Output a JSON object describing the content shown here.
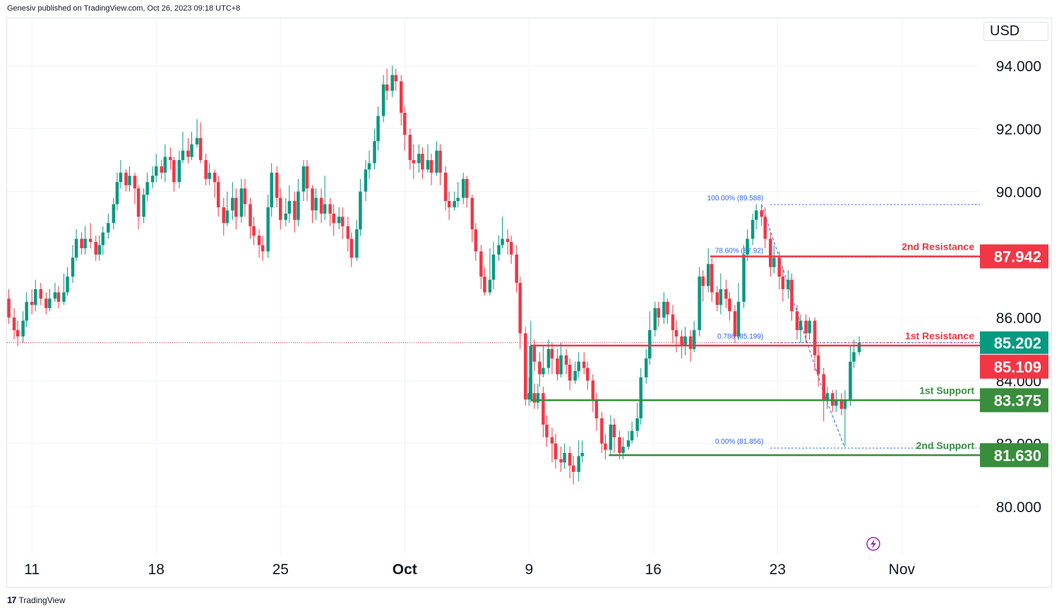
{
  "header": {
    "published": "Genesiv published on TradingView.com, Oct 26, 2023 09:18 UTC+8"
  },
  "currency": "USD",
  "footer": {
    "logo": "17",
    "brand": "TradingView"
  },
  "colors": {
    "up": "#089981",
    "down": "#f23645",
    "resistance": "#f23645",
    "support": "#388e3c",
    "fib": "#2962ff",
    "current": "#089981",
    "grid": "#f0f3fa"
  },
  "chart_data": {
    "type": "candlestick",
    "y_axis": {
      "ticks": [
        "94.000",
        "92.000",
        "90.000",
        "86.000",
        "84.000",
        "82.000",
        "80.000"
      ],
      "tick_values": [
        94,
        92,
        90,
        86,
        84,
        82,
        80
      ],
      "range": [
        78.5,
        95.5
      ]
    },
    "x_axis": {
      "ticks": [
        "11",
        "18",
        "25",
        "Oct",
        "9",
        "16",
        "23",
        "Nov"
      ],
      "tick_days": [
        0,
        7,
        14,
        21,
        28,
        35,
        42,
        49
      ],
      "range_days": [
        -1.4,
        53.4
      ]
    },
    "current_price": {
      "value": 85.202,
      "label": "85.202"
    },
    "levels": [
      {
        "name": "2nd Resistance",
        "value": 87.942,
        "label": "87.942",
        "kind": "resistance",
        "from_day": 38.2
      },
      {
        "name": "1st Resistance",
        "value": 85.109,
        "label": "85.109",
        "kind": "resistance",
        "from_day": 28.1
      },
      {
        "name": "1st Support",
        "value": 83.375,
        "label": "83.375",
        "kind": "support",
        "from_day": 28.1
      },
      {
        "name": "2nd Support",
        "value": 81.63,
        "label": "81.630",
        "kind": "support",
        "from_day": 32.5
      }
    ],
    "fibonacci": [
      {
        "label": "100.00% (89.588)",
        "value": 89.588
      },
      {
        "label": "78.60% (87.92)",
        "value": 87.92
      },
      {
        "label": "0.786 (85.199)",
        "value": 85.199
      },
      {
        "label": "0.00% (81.856)",
        "value": 81.856
      }
    ],
    "fib_from_day": 40.7,
    "candles": [
      [
        -1.3,
        86.6,
        86.0,
        86.9,
        85.8
      ],
      [
        -1.0,
        86.0,
        85.6,
        86.3,
        85.3
      ],
      [
        -0.8,
        85.6,
        85.4,
        85.9,
        85.1
      ],
      [
        -0.5,
        85.4,
        85.9,
        86.2,
        85.2
      ],
      [
        -0.3,
        85.9,
        86.5,
        86.8,
        85.7
      ],
      [
        0.0,
        86.5,
        86.4,
        86.9,
        86.1
      ],
      [
        0.2,
        86.4,
        86.9,
        87.2,
        86.2
      ],
      [
        0.5,
        86.9,
        86.6,
        87.1,
        86.4
      ],
      [
        0.8,
        86.6,
        86.3,
        86.8,
        86.1
      ],
      [
        1.0,
        86.3,
        86.6,
        86.9,
        86.2
      ],
      [
        1.3,
        86.6,
        86.8,
        87.1,
        86.5
      ],
      [
        1.5,
        86.8,
        86.5,
        87.0,
        86.3
      ],
      [
        1.8,
        86.5,
        86.8,
        87.4,
        86.4
      ],
      [
        2.0,
        86.8,
        87.3,
        87.6,
        86.7
      ],
      [
        2.3,
        87.3,
        87.9,
        88.3,
        87.1
      ],
      [
        2.5,
        87.9,
        88.5,
        88.8,
        87.8
      ],
      [
        2.8,
        88.5,
        88.2,
        88.7,
        88.0
      ],
      [
        3.0,
        88.2,
        88.5,
        88.9,
        88.0
      ],
      [
        3.3,
        88.5,
        88.4,
        89.0,
        88.2
      ],
      [
        3.6,
        88.4,
        88.0,
        88.6,
        87.8
      ],
      [
        3.8,
        88.0,
        88.3,
        88.6,
        87.8
      ],
      [
        4.0,
        88.3,
        88.7,
        88.9,
        88.0
      ],
      [
        4.3,
        88.7,
        89.0,
        89.3,
        88.5
      ],
      [
        4.6,
        89.0,
        89.6,
        89.8,
        88.8
      ],
      [
        4.8,
        89.6,
        90.3,
        90.6,
        89.4
      ],
      [
        5.0,
        90.3,
        90.6,
        91.0,
        90.1
      ],
      [
        5.3,
        90.6,
        90.2,
        90.7,
        90.0
      ],
      [
        5.5,
        90.2,
        90.5,
        90.8,
        90.0
      ],
      [
        5.8,
        90.5,
        90.1,
        90.6,
        89.6
      ],
      [
        6.0,
        90.1,
        89.2,
        90.2,
        88.8
      ],
      [
        6.3,
        89.2,
        89.9,
        90.1,
        89.0
      ],
      [
        6.5,
        89.9,
        90.3,
        90.6,
        89.7
      ],
      [
        6.8,
        90.3,
        90.5,
        90.8,
        90.1
      ],
      [
        7.0,
        90.5,
        90.8,
        91.2,
        90.3
      ],
      [
        7.3,
        90.8,
        90.6,
        91.0,
        90.4
      ],
      [
        7.5,
        90.6,
        91.1,
        91.5,
        90.3
      ],
      [
        7.8,
        91.1,
        91.0,
        91.4,
        90.7
      ],
      [
        8.0,
        91.0,
        90.3,
        91.1,
        90.0
      ],
      [
        8.3,
        90.3,
        91.0,
        91.3,
        90.1
      ],
      [
        8.5,
        91.0,
        91.3,
        91.9,
        90.9
      ],
      [
        8.8,
        91.3,
        91.1,
        91.7,
        90.9
      ],
      [
        9.0,
        91.1,
        91.5,
        91.9,
        91.0
      ],
      [
        9.3,
        91.5,
        91.7,
        92.3,
        91.4
      ],
      [
        9.5,
        91.7,
        91.0,
        92.2,
        90.9
      ],
      [
        9.8,
        91.0,
        90.4,
        91.2,
        90.2
      ],
      [
        10.0,
        90.4,
        90.6,
        90.9,
        90.2
      ],
      [
        10.3,
        90.6,
        90.3,
        90.7,
        89.8
      ],
      [
        10.5,
        90.3,
        89.5,
        90.5,
        89.2
      ],
      [
        10.8,
        89.5,
        89.0,
        89.8,
        88.6
      ],
      [
        11.0,
        89.0,
        89.4,
        90.0,
        88.9
      ],
      [
        11.3,
        89.4,
        89.8,
        90.3,
        89.1
      ],
      [
        11.5,
        89.8,
        89.2,
        90.1,
        88.8
      ],
      [
        11.8,
        89.2,
        90.1,
        90.4,
        89.0
      ],
      [
        12.0,
        90.1,
        89.6,
        90.4,
        89.2
      ],
      [
        12.3,
        89.6,
        88.9,
        89.8,
        88.5
      ],
      [
        12.5,
        88.9,
        88.6,
        89.2,
        88.3
      ],
      [
        12.8,
        88.6,
        88.3,
        88.8,
        87.9
      ],
      [
        13.0,
        88.3,
        88.1,
        88.6,
        87.8
      ],
      [
        13.3,
        88.1,
        89.5,
        89.9,
        87.9
      ],
      [
        13.5,
        89.5,
        90.6,
        90.9,
        89.2
      ],
      [
        13.8,
        90.6,
        89.8,
        90.8,
        89.5
      ],
      [
        14.0,
        89.8,
        89.1,
        90.1,
        88.8
      ],
      [
        14.3,
        89.1,
        89.3,
        89.8,
        88.9
      ],
      [
        14.5,
        89.3,
        89.7,
        90.2,
        89.0
      ],
      [
        14.8,
        89.7,
        89.1,
        90.0,
        88.7
      ],
      [
        15.0,
        89.1,
        90.0,
        90.4,
        88.9
      ],
      [
        15.3,
        90.0,
        90.8,
        91.0,
        89.7
      ],
      [
        15.5,
        90.8,
        90.1,
        91.0,
        89.7
      ],
      [
        15.8,
        90.1,
        89.4,
        90.2,
        89.0
      ],
      [
        16.0,
        89.4,
        89.8,
        90.1,
        89.1
      ],
      [
        16.3,
        89.8,
        89.3,
        90.1,
        89.0
      ],
      [
        16.5,
        89.3,
        89.6,
        90.5,
        89.1
      ],
      [
        16.8,
        89.6,
        89.3,
        89.8,
        88.9
      ],
      [
        17.0,
        89.3,
        89.0,
        89.6,
        88.6
      ],
      [
        17.3,
        89.0,
        89.2,
        89.5,
        88.8
      ],
      [
        17.5,
        89.2,
        88.9,
        89.5,
        88.5
      ],
      [
        17.8,
        88.9,
        88.5,
        89.2,
        88.1
      ],
      [
        18.0,
        88.5,
        87.9,
        88.7,
        87.6
      ],
      [
        18.3,
        87.9,
        88.8,
        89.1,
        87.8
      ],
      [
        18.5,
        88.8,
        90.0,
        90.4,
        88.6
      ],
      [
        18.8,
        90.0,
        90.7,
        91.0,
        89.7
      ],
      [
        19.0,
        90.7,
        90.9,
        91.3,
        90.4
      ],
      [
        19.3,
        90.9,
        91.6,
        92.0,
        90.7
      ],
      [
        19.5,
        91.6,
        92.4,
        92.7,
        91.3
      ],
      [
        19.8,
        92.4,
        93.4,
        93.7,
        92.2
      ],
      [
        20.0,
        93.4,
        93.2,
        93.9,
        92.9
      ],
      [
        20.3,
        93.2,
        93.7,
        94.0,
        93.0
      ],
      [
        20.5,
        93.7,
        93.5,
        93.9,
        93.2
      ],
      [
        20.8,
        93.5,
        92.5,
        93.7,
        92.1
      ],
      [
        21.0,
        92.5,
        91.8,
        92.7,
        91.3
      ],
      [
        21.3,
        91.8,
        91.0,
        92.0,
        90.7
      ],
      [
        21.5,
        91.0,
        90.9,
        91.5,
        90.4
      ],
      [
        21.8,
        90.9,
        91.2,
        91.5,
        90.6
      ],
      [
        22.0,
        91.2,
        90.7,
        91.4,
        90.4
      ],
      [
        22.3,
        90.7,
        91.0,
        91.5,
        90.6
      ],
      [
        22.5,
        91.0,
        90.6,
        91.2,
        90.2
      ],
      [
        22.8,
        90.6,
        91.3,
        91.6,
        90.5
      ],
      [
        23.0,
        91.3,
        90.6,
        91.5,
        90.2
      ],
      [
        23.3,
        90.6,
        89.7,
        90.8,
        89.4
      ],
      [
        23.5,
        89.7,
        89.5,
        90.0,
        89.1
      ],
      [
        23.8,
        89.5,
        89.7,
        90.0,
        89.4
      ],
      [
        24.0,
        89.7,
        89.8,
        90.3,
        89.5
      ],
      [
        24.3,
        89.8,
        90.4,
        90.6,
        89.6
      ],
      [
        24.5,
        90.4,
        89.8,
        90.5,
        89.5
      ],
      [
        24.8,
        89.8,
        88.8,
        89.9,
        88.4
      ],
      [
        25.0,
        88.8,
        88.1,
        89.0,
        87.8
      ],
      [
        25.3,
        88.1,
        87.3,
        88.3,
        86.9
      ],
      [
        25.5,
        87.3,
        86.8,
        87.6,
        86.7
      ],
      [
        25.8,
        86.8,
        87.2,
        88.2,
        86.7
      ],
      [
        26.0,
        87.2,
        88.0,
        88.4,
        86.9
      ],
      [
        26.3,
        88.0,
        88.3,
        88.6,
        87.8
      ],
      [
        26.5,
        88.3,
        88.5,
        89.2,
        88.2
      ],
      [
        26.8,
        88.5,
        88.4,
        88.8,
        88.0
      ],
      [
        27.0,
        88.4,
        88.0,
        88.6,
        87.7
      ],
      [
        27.3,
        88.0,
        87.1,
        88.3,
        86.8
      ],
      [
        27.5,
        87.1,
        85.5,
        87.3,
        85.0
      ],
      [
        27.8,
        85.5,
        83.4,
        85.7,
        83.2
      ],
      [
        28.0,
        83.4,
        83.6,
        84.1,
        83.2
      ],
      [
        28.3,
        83.6,
        83.3,
        83.9,
        83.1
      ],
      [
        28.5,
        83.3,
        83.6,
        83.9,
        83.1
      ],
      [
        28.8,
        83.6,
        82.6,
        83.8,
        82.2
      ],
      [
        29.0,
        82.6,
        82.2,
        82.9,
        81.9
      ],
      [
        29.3,
        82.2,
        82.0,
        82.5,
        81.4
      ],
      [
        29.5,
        82.0,
        81.5,
        82.3,
        81.2
      ],
      [
        29.8,
        81.5,
        81.4,
        81.9,
        81.1
      ],
      [
        30.0,
        81.4,
        81.7,
        82.0,
        81.2
      ],
      [
        30.3,
        81.7,
        81.3,
        81.9,
        80.9
      ],
      [
        30.5,
        81.3,
        81.1,
        81.6,
        80.7
      ],
      [
        30.8,
        81.1,
        81.6,
        82.1,
        80.8
      ],
      [
        31.0,
        81.6,
        81.7,
        82.1,
        81.4
      ],
      [
        28.1,
        83.4,
        85.1,
        85.9,
        83.3
      ],
      [
        28.3,
        85.1,
        84.6,
        85.3,
        84.3
      ],
      [
        28.6,
        84.6,
        84.2,
        84.9,
        83.8
      ],
      [
        28.8,
        84.2,
        84.4,
        85.1,
        84.1
      ],
      [
        29.1,
        84.4,
        85.0,
        85.3,
        84.2
      ],
      [
        29.3,
        85.0,
        84.7,
        85.2,
        84.2
      ],
      [
        29.6,
        84.7,
        84.2,
        85.0,
        84.0
      ],
      [
        29.8,
        84.2,
        84.8,
        85.2,
        84.1
      ],
      [
        30.1,
        84.8,
        84.5,
        85.0,
        84.2
      ],
      [
        30.3,
        84.5,
        84.0,
        84.7,
        83.7
      ],
      [
        30.6,
        84.0,
        84.3,
        84.6,
        83.9
      ],
      [
        30.8,
        84.3,
        84.6,
        84.9,
        84.1
      ],
      [
        31.1,
        84.6,
        84.4,
        84.9,
        84.2
      ],
      [
        31.3,
        84.4,
        84.0,
        84.6,
        83.7
      ],
      [
        31.6,
        84.0,
        83.4,
        84.2,
        83.0
      ],
      [
        31.8,
        83.4,
        82.8,
        83.6,
        82.4
      ],
      [
        32.1,
        82.8,
        82.0,
        83.0,
        81.7
      ],
      [
        32.3,
        82.0,
        81.8,
        82.3,
        81.5
      ],
      [
        32.6,
        81.8,
        82.6,
        82.9,
        81.6
      ],
      [
        32.8,
        82.6,
        82.2,
        82.8,
        81.7
      ],
      [
        33.1,
        82.2,
        81.7,
        82.4,
        81.5
      ],
      [
        33.3,
        81.7,
        81.9,
        82.2,
        81.5
      ],
      [
        33.6,
        81.9,
        82.1,
        82.4,
        81.8
      ],
      [
        33.8,
        82.1,
        82.4,
        82.7,
        82.0
      ],
      [
        34.1,
        82.4,
        82.8,
        83.3,
        82.2
      ],
      [
        34.3,
        82.8,
        84.1,
        84.4,
        82.6
      ],
      [
        34.6,
        84.1,
        84.7,
        85.0,
        83.9
      ],
      [
        34.8,
        84.7,
        85.6,
        86.2,
        84.5
      ],
      [
        35.1,
        85.6,
        86.3,
        86.5,
        85.4
      ],
      [
        35.3,
        86.3,
        86.0,
        86.5,
        85.7
      ],
      [
        35.6,
        86.0,
        86.5,
        86.8,
        85.8
      ],
      [
        35.8,
        86.5,
        86.1,
        86.6,
        85.8
      ],
      [
        36.1,
        86.1,
        85.6,
        86.4,
        85.2
      ],
      [
        36.3,
        85.6,
        85.4,
        85.9,
        84.9
      ],
      [
        36.6,
        85.4,
        85.1,
        85.6,
        84.7
      ],
      [
        36.8,
        85.1,
        85.4,
        85.7,
        84.8
      ],
      [
        37.1,
        85.4,
        85.0,
        85.6,
        84.6
      ],
      [
        37.3,
        85.0,
        85.6,
        85.9,
        84.9
      ],
      [
        37.6,
        85.6,
        87.3,
        87.6,
        85.4
      ],
      [
        37.8,
        87.3,
        87.0,
        87.5,
        86.5
      ],
      [
        38.1,
        87.0,
        87.7,
        88.2,
        86.8
      ],
      [
        38.3,
        87.7,
        86.8,
        87.9,
        86.5
      ],
      [
        38.6,
        86.8,
        86.4,
        87.0,
        86.2
      ],
      [
        38.8,
        86.4,
        86.9,
        87.4,
        86.1
      ],
      [
        39.1,
        86.9,
        86.6,
        87.2,
        86.3
      ],
      [
        39.3,
        86.6,
        86.2,
        86.8,
        85.9
      ],
      [
        39.6,
        86.2,
        85.4,
        86.4,
        85.2
      ],
      [
        39.8,
        85.4,
        86.5,
        87.1,
        85.3
      ],
      [
        40.1,
        86.5,
        88.0,
        88.3,
        86.3
      ],
      [
        40.3,
        88.0,
        88.5,
        88.8,
        87.8
      ],
      [
        40.6,
        88.5,
        89.1,
        89.3,
        88.3
      ],
      [
        40.8,
        89.1,
        89.4,
        89.6,
        88.8
      ],
      [
        41.1,
        89.4,
        89.2,
        89.6,
        88.9
      ],
      [
        41.3,
        89.2,
        88.5,
        89.5,
        88.2
      ],
      [
        41.6,
        88.5,
        87.6,
        88.7,
        87.3
      ],
      [
        41.8,
        87.6,
        87.9,
        88.3,
        87.4
      ],
      [
        42.1,
        87.9,
        87.3,
        88.1,
        86.9
      ],
      [
        42.3,
        87.3,
        86.9,
        87.6,
        86.5
      ],
      [
        42.6,
        86.9,
        87.2,
        87.5,
        86.6
      ],
      [
        42.8,
        87.2,
        86.2,
        87.4,
        85.9
      ],
      [
        43.1,
        86.2,
        85.6,
        86.4,
        85.3
      ],
      [
        43.3,
        85.6,
        85.9,
        86.1,
        85.2
      ],
      [
        43.6,
        85.9,
        85.5,
        86.1,
        85.2
      ],
      [
        43.8,
        85.5,
        85.9,
        86.0,
        85.3
      ],
      [
        44.1,
        85.9,
        84.8,
        86.0,
        84.3
      ],
      [
        44.3,
        84.8,
        84.2,
        85.1,
        83.8
      ],
      [
        44.6,
        84.2,
        83.4,
        84.4,
        82.7
      ],
      [
        44.8,
        83.4,
        83.6,
        83.8,
        83.1
      ],
      [
        45.1,
        83.6,
        83.2,
        83.7,
        83.0
      ],
      [
        45.3,
        83.2,
        83.4,
        83.7,
        83.0
      ],
      [
        45.6,
        83.4,
        83.1,
        83.6,
        82.9
      ],
      [
        45.8,
        83.1,
        83.4,
        83.7,
        81.9
      ],
      [
        46.1,
        83.4,
        84.6,
        85.1,
        83.2
      ],
      [
        46.3,
        84.6,
        84.9,
        85.3,
        84.4
      ],
      [
        46.6,
        84.9,
        85.2,
        85.4,
        84.8
      ]
    ]
  }
}
